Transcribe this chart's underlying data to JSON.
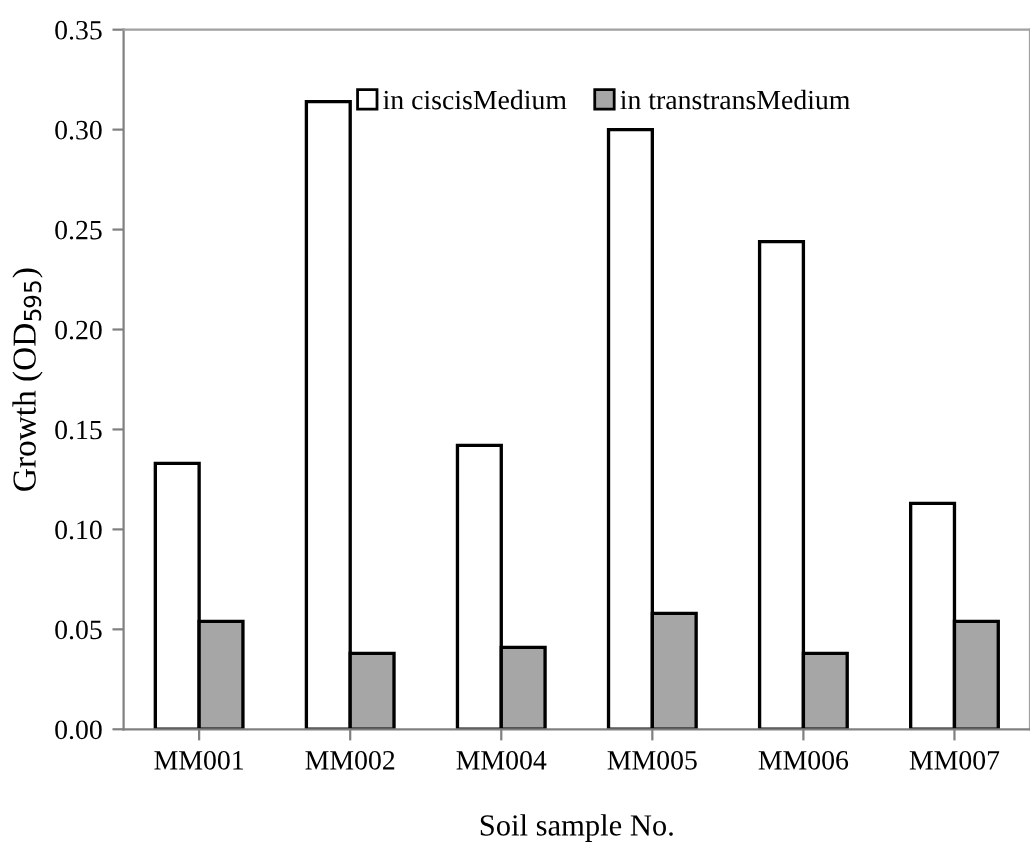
{
  "chart_data": {
    "type": "bar",
    "xlabel": "Soil sample No.",
    "ylabel": "Growth (OD$_{595}$)",
    "categories": [
      "MM001",
      "MM002",
      "MM004",
      "MM005",
      "MM006",
      "MM007"
    ],
    "series": [
      {
        "name": "in ciscisMedium",
        "color": "#ffffff",
        "values": [
          0.133,
          0.314,
          0.142,
          0.3,
          0.244,
          0.113
        ]
      },
      {
        "name": "in transtransMedium",
        "color": "#a6a6a6",
        "values": [
          0.054,
          0.038,
          0.041,
          0.058,
          0.038,
          0.054
        ]
      }
    ],
    "ylim": [
      0,
      0.35
    ],
    "yticks": [
      {
        "value": 0,
        "label": "0.00"
      },
      {
        "value": 0.05,
        "label": "0.05"
      },
      {
        "value": 0.1,
        "label": "0.10"
      },
      {
        "value": 0.15,
        "label": "0.15"
      },
      {
        "value": 0.2,
        "label": "0.20"
      },
      {
        "value": 0.25,
        "label": "0.25"
      },
      {
        "value": 0.3,
        "label": "0.30"
      },
      {
        "value": 0.35,
        "label": "0.35"
      }
    ],
    "legend": "top",
    "grid": false
  }
}
